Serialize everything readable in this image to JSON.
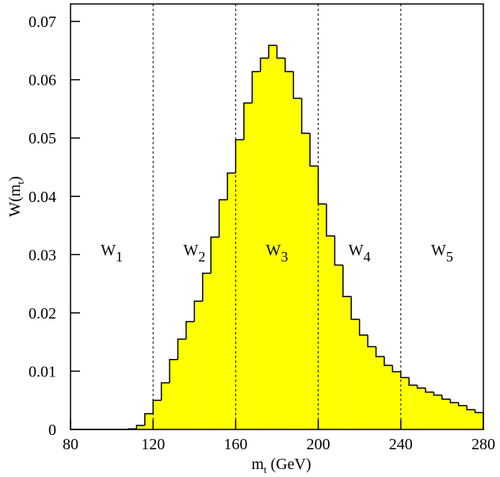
{
  "chart_data": {
    "type": "histogram",
    "x_label": {
      "main": "m",
      "sub": "t",
      "tail": " (GeV)"
    },
    "y_label": {
      "main": "W(m",
      "sub": "t",
      "tail": ")"
    },
    "bins": [
      80,
      84,
      88,
      92,
      96,
      100,
      104,
      108,
      112,
      116,
      120,
      124,
      128,
      132,
      136,
      140,
      144,
      148,
      152,
      156,
      160,
      164,
      168,
      172,
      176,
      180,
      184,
      188,
      192,
      196,
      200,
      204,
      208,
      212,
      216,
      220,
      224,
      228,
      232,
      236,
      240,
      244,
      248,
      252,
      256,
      260,
      264,
      268,
      272,
      276,
      280
    ],
    "values": [
      0,
      0,
      0,
      0,
      0,
      0,
      0,
      0.0001,
      0.0007,
      0.0027,
      0.005,
      0.008,
      0.012,
      0.0155,
      0.0185,
      0.022,
      0.0268,
      0.033,
      0.0394,
      0.044,
      0.0497,
      0.056,
      0.0614,
      0.0637,
      0.0659,
      0.0637,
      0.0614,
      0.0568,
      0.0508,
      0.0452,
      0.0387,
      0.0332,
      0.0282,
      0.0228,
      0.0189,
      0.0162,
      0.0142,
      0.0125,
      0.011,
      0.0099,
      0.0089,
      0.0076,
      0.0071,
      0.0064,
      0.0059,
      0.0052,
      0.0046,
      0.0041,
      0.0034,
      0.0029
    ],
    "color": "#ffff00",
    "xlim": [
      80,
      280
    ],
    "xticks": [
      80,
      120,
      160,
      200,
      240,
      280
    ],
    "ylim": [
      0,
      0.073
    ],
    "yticks": [
      0,
      0.01,
      0.02,
      0.03,
      0.04,
      0.05,
      0.06,
      0.07
    ],
    "dividers": [
      120,
      160,
      200,
      240
    ],
    "region_labels": [
      {
        "main": "W",
        "sub": "1"
      },
      {
        "main": "W",
        "sub": "2"
      },
      {
        "main": "W",
        "sub": "3"
      },
      {
        "main": "W",
        "sub": "4"
      },
      {
        "main": "W",
        "sub": "5"
      }
    ]
  }
}
